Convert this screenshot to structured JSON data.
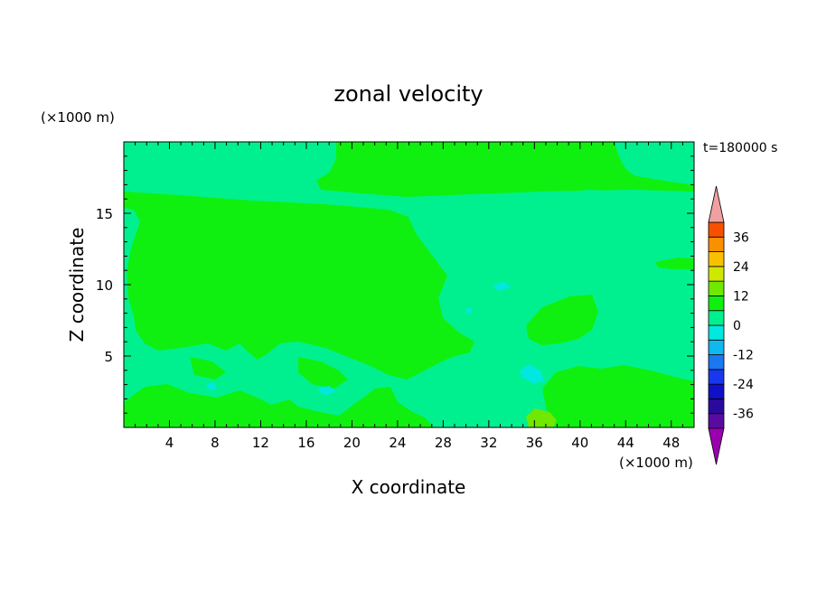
{
  "chart_data": {
    "type": "heatmap",
    "title": "zonal velocity",
    "time_label": "t=180000 s",
    "xlabel": "X coordinate",
    "ylabel": "Z coordinate",
    "x_unit": "(×1000 m)",
    "y_unit": "(×1000 m)",
    "xlim": [
      0,
      50
    ],
    "ylim": [
      0,
      20
    ],
    "x_ticks": [
      "4",
      "8",
      "12",
      "16",
      "20",
      "24",
      "28",
      "32",
      "36",
      "40",
      "44",
      "48"
    ],
    "x_tick_values": [
      4,
      8,
      12,
      16,
      20,
      24,
      28,
      32,
      36,
      40,
      44,
      48
    ],
    "y_ticks": [
      "5",
      "10",
      "15"
    ],
    "y_tick_values": [
      5,
      10,
      15
    ],
    "colorbar": {
      "labels": [
        "36",
        "24",
        "12",
        "0",
        "-12",
        "-24",
        "-36"
      ],
      "label_levels": [
        36,
        24,
        12,
        0,
        -12,
        -24,
        -36
      ],
      "levels": [
        -42,
        -36,
        -30,
        -24,
        -18,
        -12,
        -6,
        0,
        6,
        12,
        18,
        24,
        30,
        36,
        42
      ],
      "colors": [
        "#5a0aa0",
        "#2a0a9c",
        "#1010c8",
        "#1838f0",
        "#1a78f0",
        "#10b8f0",
        "#00e8e0",
        "#00f090",
        "#10f010",
        "#70e800",
        "#d0e800",
        "#f8c000",
        "#f89000",
        "#f85000",
        "#e81010"
      ],
      "over_color": "#f0a0a0",
      "under_color": "#9a00b0"
    },
    "field_colors": {
      "band_0_to_6": "#00f090",
      "band_6_to_12": "#10f010",
      "band_12_to_18": "#70e800",
      "band_minus6_to_0": "#00e8e0"
    }
  }
}
